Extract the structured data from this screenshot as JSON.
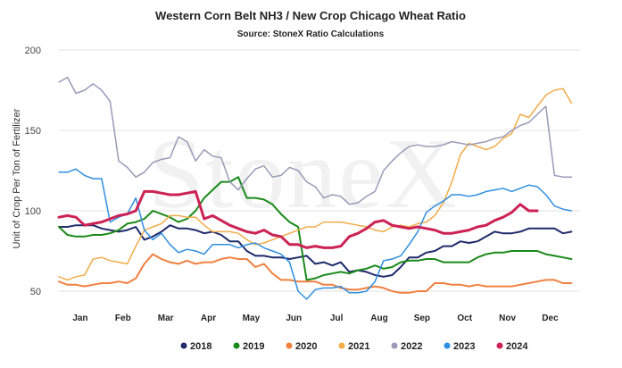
{
  "chart_data": {
    "type": "line",
    "title": "Western Corn Belt NH3 / New Crop Chicago Wheat Ratio",
    "subtitle": "Source: StoneX Ratio Calculations",
    "xlabel": "",
    "ylabel": "Unit of Crop Per Ton of Fertilizer",
    "ylim": [
      50,
      200
    ],
    "yticks": [
      50,
      100,
      150,
      200
    ],
    "xlim": [
      0,
      12.2
    ],
    "xticks": [
      {
        "label": "Jan",
        "x": 0.5
      },
      {
        "label": "Feb",
        "x": 1.5
      },
      {
        "label": "Mar",
        "x": 2.5
      },
      {
        "label": "Apr",
        "x": 3.5
      },
      {
        "label": "May",
        "x": 4.5
      },
      {
        "label": "Jun",
        "x": 5.5
      },
      {
        "label": "Jul",
        "x": 6.5
      },
      {
        "label": "Aug",
        "x": 7.5
      },
      {
        "label": "Sep",
        "x": 8.5
      },
      {
        "label": "Oct",
        "x": 9.5
      },
      {
        "label": "Nov",
        "x": 10.5
      },
      {
        "label": "Dec",
        "x": 11.5
      }
    ],
    "grid": "horizontal",
    "legend_position": "bottom",
    "watermark": "StoneX",
    "series": [
      {
        "name": "2018",
        "color": "#1f2a6b",
        "width": 2,
        "x": [
          0,
          0.2,
          0.4,
          0.6,
          0.8,
          1,
          1.2,
          1.4,
          1.6,
          1.8,
          2,
          2.2,
          2.4,
          2.6,
          2.8,
          3,
          3.2,
          3.4,
          3.6,
          3.8,
          4,
          4.2,
          4.4,
          4.6,
          4.8,
          5,
          5.2,
          5.4,
          5.6,
          5.8,
          6,
          6.2,
          6.4,
          6.6,
          6.8,
          7,
          7.2,
          7.4,
          7.6,
          7.8,
          8,
          8.2,
          8.4,
          8.6,
          8.8,
          9,
          9.2,
          9.4,
          9.6,
          9.8,
          10,
          10.2,
          10.4,
          10.6,
          10.8,
          11,
          11.2,
          11.4,
          11.6,
          11.8,
          12
        ],
        "y": [
          90,
          90,
          91,
          91,
          91,
          89,
          88,
          87,
          88,
          90,
          82,
          84,
          87,
          91,
          89,
          89,
          88,
          86,
          87,
          85,
          81,
          81,
          75,
          72,
          72,
          71,
          71,
          70,
          71,
          72,
          67,
          68,
          66,
          68,
          62,
          63,
          62,
          60,
          59,
          60,
          65,
          71,
          71,
          74,
          75,
          78,
          78,
          81,
          80,
          81,
          84,
          87,
          86,
          86,
          87,
          89,
          89,
          89,
          89,
          86,
          87
        ]
      },
      {
        "name": "2019",
        "color": "#1a8a1a",
        "width": 2,
        "x": [
          0,
          0.2,
          0.4,
          0.6,
          0.8,
          1,
          1.2,
          1.4,
          1.6,
          1.8,
          2,
          2.2,
          2.4,
          2.6,
          2.8,
          3,
          3.2,
          3.4,
          3.6,
          3.8,
          4,
          4.2,
          4.4,
          4.6,
          4.8,
          5,
          5.2,
          5.4,
          5.6,
          5.8,
          6,
          6.2,
          6.4,
          6.6,
          6.8,
          7,
          7.2,
          7.4,
          7.6,
          7.8,
          8,
          8.2,
          8.4,
          8.6,
          8.8,
          9,
          9.2,
          9.4,
          9.6,
          9.8,
          10,
          10.2,
          10.4,
          10.6,
          10.8,
          11,
          11.2,
          11.4,
          11.6,
          11.8,
          12
        ],
        "y": [
          90,
          85,
          84,
          84,
          85,
          85,
          86,
          88,
          92,
          93,
          95,
          100,
          98,
          96,
          93,
          95,
          100,
          108,
          113,
          118,
          118,
          121,
          108,
          108,
          107,
          104,
          98,
          93,
          90,
          57,
          58,
          60,
          61,
          62,
          61,
          63,
          64,
          66,
          64,
          65,
          68,
          69,
          69,
          70,
          70,
          68,
          68,
          68,
          68,
          71,
          73,
          74,
          74,
          75,
          75,
          75,
          75,
          73,
          72,
          71,
          70
        ]
      },
      {
        "name": "2020",
        "color": "#f08040",
        "width": 2,
        "x": [
          0,
          0.2,
          0.4,
          0.6,
          0.8,
          1,
          1.2,
          1.4,
          1.6,
          1.8,
          2,
          2.2,
          2.4,
          2.6,
          2.8,
          3,
          3.2,
          3.4,
          3.6,
          3.8,
          4,
          4.2,
          4.4,
          4.6,
          4.8,
          5,
          5.2,
          5.4,
          5.6,
          5.8,
          6,
          6.2,
          6.4,
          6.6,
          6.8,
          7,
          7.2,
          7.4,
          7.6,
          7.8,
          8,
          8.2,
          8.4,
          8.6,
          8.8,
          9,
          9.2,
          9.4,
          9.6,
          9.8,
          10,
          10.2,
          10.4,
          10.6,
          10.8,
          11,
          11.2,
          11.4,
          11.6,
          11.8,
          12
        ],
        "y": [
          56,
          54,
          54,
          53,
          54,
          55,
          55,
          56,
          55,
          58,
          67,
          73,
          70,
          68,
          67,
          69,
          67,
          68,
          68,
          70,
          71,
          70,
          70,
          65,
          67,
          61,
          57,
          57,
          56,
          56,
          56,
          54,
          54,
          52,
          51,
          51,
          52,
          53,
          52,
          50,
          49,
          49,
          50,
          50,
          55,
          55,
          54,
          54,
          53,
          54,
          53,
          53,
          53,
          53,
          54,
          55,
          56,
          57,
          57,
          55,
          55
        ]
      },
      {
        "name": "2021",
        "color": "#f0ac48",
        "width": 1.5,
        "x": [
          0,
          0.2,
          0.4,
          0.6,
          0.8,
          1,
          1.2,
          1.4,
          1.6,
          1.8,
          2,
          2.2,
          2.4,
          2.6,
          2.8,
          3,
          3.2,
          3.4,
          3.6,
          3.8,
          4,
          4.2,
          4.4,
          4.6,
          4.8,
          5,
          5.2,
          5.4,
          5.6,
          5.8,
          6,
          6.2,
          6.4,
          6.6,
          6.8,
          7,
          7.2,
          7.4,
          7.6,
          7.8,
          8,
          8.2,
          8.4,
          8.6,
          8.8,
          9,
          9.2,
          9.4,
          9.6,
          9.8,
          10,
          10.2,
          10.4,
          10.6,
          10.8,
          11,
          11.2,
          11.4,
          11.6,
          11.8,
          12
        ],
        "y": [
          59,
          57,
          59,
          60,
          70,
          71,
          69,
          68,
          67,
          78,
          88,
          90,
          92,
          97,
          97,
          96,
          96,
          91,
          87,
          87,
          87,
          86,
          82,
          79,
          80,
          82,
          84,
          86,
          88,
          90,
          90,
          93,
          93,
          93,
          92,
          91,
          90,
          88,
          87,
          90,
          91,
          90,
          92,
          93,
          97,
          105,
          118,
          135,
          142,
          140,
          138,
          140,
          145,
          148,
          160,
          158,
          165,
          172,
          175,
          176,
          167
        ]
      },
      {
        "name": "2022",
        "color": "#9a9ab8",
        "width": 1.5,
        "x": [
          0,
          0.2,
          0.4,
          0.6,
          0.8,
          1,
          1.2,
          1.4,
          1.6,
          1.8,
          2,
          2.2,
          2.4,
          2.6,
          2.8,
          3,
          3.2,
          3.4,
          3.6,
          3.8,
          4,
          4.2,
          4.4,
          4.6,
          4.8,
          5,
          5.2,
          5.4,
          5.6,
          5.8,
          6,
          6.2,
          6.4,
          6.6,
          6.8,
          7,
          7.2,
          7.4,
          7.6,
          7.8,
          8,
          8.2,
          8.4,
          8.6,
          8.8,
          9,
          9.2,
          9.4,
          9.6,
          9.8,
          10,
          10.2,
          10.4,
          10.6,
          10.8,
          11,
          11.2,
          11.4,
          11.6,
          11.8,
          12
        ],
        "y": [
          180,
          183,
          173,
          175,
          179,
          175,
          168,
          131,
          127,
          121,
          124,
          130,
          132,
          133,
          146,
          143,
          131,
          138,
          134,
          133,
          118,
          113,
          120,
          126,
          128,
          121,
          122,
          127,
          125,
          118,
          115,
          108,
          110,
          109,
          104,
          105,
          109,
          112,
          125,
          131,
          136,
          140,
          141,
          140,
          140,
          141,
          143,
          142,
          141,
          142,
          143,
          145,
          146,
          150,
          153,
          155,
          160,
          165,
          122,
          121,
          121
        ]
      },
      {
        "name": "2023",
        "color": "#2f8fe0",
        "width": 1.5,
        "x": [
          0,
          0.2,
          0.4,
          0.6,
          0.8,
          1,
          1.2,
          1.4,
          1.6,
          1.8,
          2,
          2.2,
          2.4,
          2.6,
          2.8,
          3,
          3.2,
          3.4,
          3.6,
          3.8,
          4,
          4.2,
          4.4,
          4.6,
          4.8,
          5,
          5.2,
          5.4,
          5.6,
          5.8,
          6,
          6.2,
          6.4,
          6.6,
          6.8,
          7,
          7.2,
          7.4,
          7.6,
          7.8,
          8,
          8.2,
          8.4,
          8.6,
          8.8,
          9,
          9.2,
          9.4,
          9.6,
          9.8,
          10,
          10.2,
          10.4,
          10.6,
          10.8,
          11,
          11.2,
          11.4,
          11.6,
          11.8,
          12
        ],
        "y": [
          124,
          124,
          126,
          122,
          120,
          120,
          93,
          96,
          98,
          108,
          88,
          82,
          86,
          79,
          74,
          76,
          75,
          73,
          79,
          79,
          79,
          77,
          79,
          80,
          77,
          75,
          73,
          68,
          50,
          45,
          51,
          52,
          52,
          53,
          49,
          49,
          50,
          56,
          69,
          70,
          72,
          79,
          87,
          99,
          103,
          106,
          110,
          110,
          109,
          110,
          112,
          113,
          114,
          112,
          114,
          116,
          115,
          110,
          103,
          101,
          100
        ]
      },
      {
        "name": "2024",
        "color": "#cc2255",
        "width": 3,
        "x": [
          0,
          0.2,
          0.4,
          0.6,
          0.8,
          1,
          1.2,
          1.4,
          1.6,
          1.8,
          2,
          2.2,
          2.4,
          2.6,
          2.8,
          3,
          3.2,
          3.4,
          3.6,
          3.8,
          4,
          4.2,
          4.4,
          4.6,
          4.8,
          5,
          5.2,
          5.4,
          5.6,
          5.8,
          6,
          6.2,
          6.4,
          6.6,
          6.8,
          7,
          7.2,
          7.4,
          7.6,
          7.8,
          8,
          8.2,
          8.4,
          8.6,
          8.8,
          9,
          9.2,
          9.4,
          9.6,
          9.8,
          10,
          10.2,
          10.4,
          10.6,
          10.8,
          11,
          11.2
        ],
        "y": [
          96,
          97,
          96,
          91,
          92,
          93,
          95,
          97,
          98,
          100,
          112,
          112,
          111,
          110,
          110,
          111,
          112,
          95,
          97,
          94,
          91,
          89,
          87,
          86,
          88,
          85,
          84,
          79,
          79,
          77,
          78,
          77,
          77,
          78,
          84,
          86,
          89,
          93,
          94,
          91,
          90,
          89,
          90,
          89,
          88,
          86,
          86,
          87,
          88,
          90,
          91,
          94,
          96,
          99,
          104,
          100,
          100
        ]
      }
    ]
  }
}
